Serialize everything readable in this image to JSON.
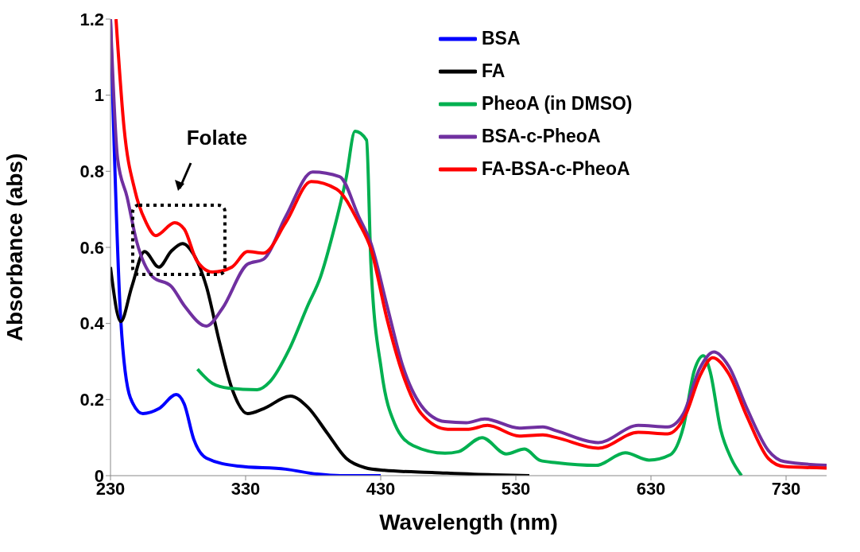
{
  "chart_data": {
    "type": "line",
    "xlabel": "Wavelength (nm)",
    "ylabel": "Absorbance (abs)",
    "xlim": [
      230,
      760
    ],
    "xticks": [
      230,
      330,
      430,
      530,
      630,
      730
    ],
    "ylim": [
      0,
      1.2
    ],
    "yticks": [
      0,
      0.2,
      0.4,
      0.6,
      0.8,
      1,
      1.2
    ],
    "grid": false,
    "legend": "top right",
    "marker": "none",
    "line_style": "solid",
    "annotations": [
      "Folate"
    ],
    "series": [
      {
        "name": "BSA",
        "color": "#0000ff",
        "x": [
          230,
          237.6,
          244.7,
          254,
          265.8,
          278.7,
          284.6,
          291.6,
          301,
          324.5,
          359.7,
          383,
          400,
          430
        ],
        "values": [
          1.2,
          0.41,
          0.205,
          0.163,
          0.176,
          0.213,
          0.188,
          0.096,
          0.046,
          0.025,
          0.017,
          0.004,
          0,
          0
        ]
      },
      {
        "name": "FA",
        "color": "#000000",
        "x": [
          230,
          237.6,
          245.8,
          255.2,
          265.8,
          275,
          283.4,
          291.6,
          301,
          310.4,
          319.8,
          331.5,
          343.3,
          363.2,
          376,
          390.2,
          404.3,
          418.4,
          432.5,
          470,
          513,
          540
        ],
        "values": [
          0.548,
          0.405,
          0.497,
          0.589,
          0.548,
          0.59,
          0.61,
          0.581,
          0.497,
          0.355,
          0.23,
          0.163,
          0.176,
          0.209,
          0.18,
          0.113,
          0.046,
          0.021,
          0.014,
          0.008,
          0.002,
          0
        ]
      },
      {
        "name": "PheoA (in DMSO)",
        "color": "#00b050",
        "x": [
          294.4,
          305.7,
          317.4,
          338.6,
          348,
          362,
          376,
          385.5,
          394.9,
          404.3,
          411,
          419.5,
          422.8,
          430.6,
          440.4,
          454,
          477.6,
          487.5,
          505,
          522.8,
          536.5,
          548,
          560,
          589.4,
          611,
          628.6,
          644.3,
          654,
          662,
          668.8,
          673.7,
          681.6,
          689.4,
          697
        ],
        "values": [
          0.28,
          0.242,
          0.23,
          0.226,
          0.247,
          0.33,
          0.447,
          0.523,
          0.64,
          0.78,
          0.905,
          0.882,
          0.553,
          0.275,
          0.136,
          0.079,
          0.059,
          0.063,
          0.1,
          0.057,
          0.07,
          0.04,
          0.034,
          0.027,
          0.06,
          0.041,
          0.055,
          0.128,
          0.275,
          0.315,
          0.275,
          0.121,
          0.045,
          0
        ]
      },
      {
        "name": "BSA-c-PheoA",
        "color": "#7030a0",
        "x": [
          230,
          235.3,
          242.3,
          249.4,
          261.1,
          275.2,
          284.6,
          301,
          312.7,
          331.5,
          343.3,
          359.7,
          379.6,
          399.6,
          413.7,
          422.8,
          434.5,
          446.3,
          460,
          477.6,
          493.3,
          507,
          532.5,
          550,
          560,
          591,
          620.6,
          642.4,
          654,
          666,
          676.6,
          687.5,
          701,
          716.9,
          728.6,
          760
        ],
        "values": [
          1.2,
          0.832,
          0.732,
          0.615,
          0.523,
          0.497,
          0.447,
          0.393,
          0.439,
          0.556,
          0.569,
          0.681,
          0.798,
          0.786,
          0.681,
          0.61,
          0.449,
          0.288,
          0.184,
          0.142,
          0.139,
          0.149,
          0.125,
          0.128,
          0.118,
          0.087,
          0.132,
          0.128,
          0.163,
          0.281,
          0.325,
          0.288,
          0.177,
          0.066,
          0.037,
          0.027
        ]
      },
      {
        "name": "FA-BSA-c-PheoA",
        "color": "#ff0000",
        "x": [
          234.1,
          240,
          248.2,
          256.4,
          263.5,
          277.5,
          284.6,
          294,
          305.7,
          319.8,
          331.5,
          343.3,
          359.7,
          378.5,
          397.3,
          413.7,
          422.8,
          434.5,
          446.3,
          460,
          479.6,
          495,
          509,
          532.5,
          550,
          560,
          591,
          620.6,
          642.4,
          656,
          666,
          675.7,
          687.5,
          701,
          716.9,
          728.6,
          760
        ],
        "values": [
          1.2,
          0.916,
          0.748,
          0.665,
          0.631,
          0.665,
          0.648,
          0.564,
          0.535,
          0.548,
          0.589,
          0.585,
          0.665,
          0.773,
          0.753,
          0.665,
          0.595,
          0.414,
          0.267,
          0.163,
          0.122,
          0.122,
          0.132,
          0.104,
          0.107,
          0.1,
          0.072,
          0.114,
          0.11,
          0.163,
          0.26,
          0.31,
          0.268,
          0.156,
          0.045,
          0.024,
          0.02
        ]
      }
    ]
  }
}
